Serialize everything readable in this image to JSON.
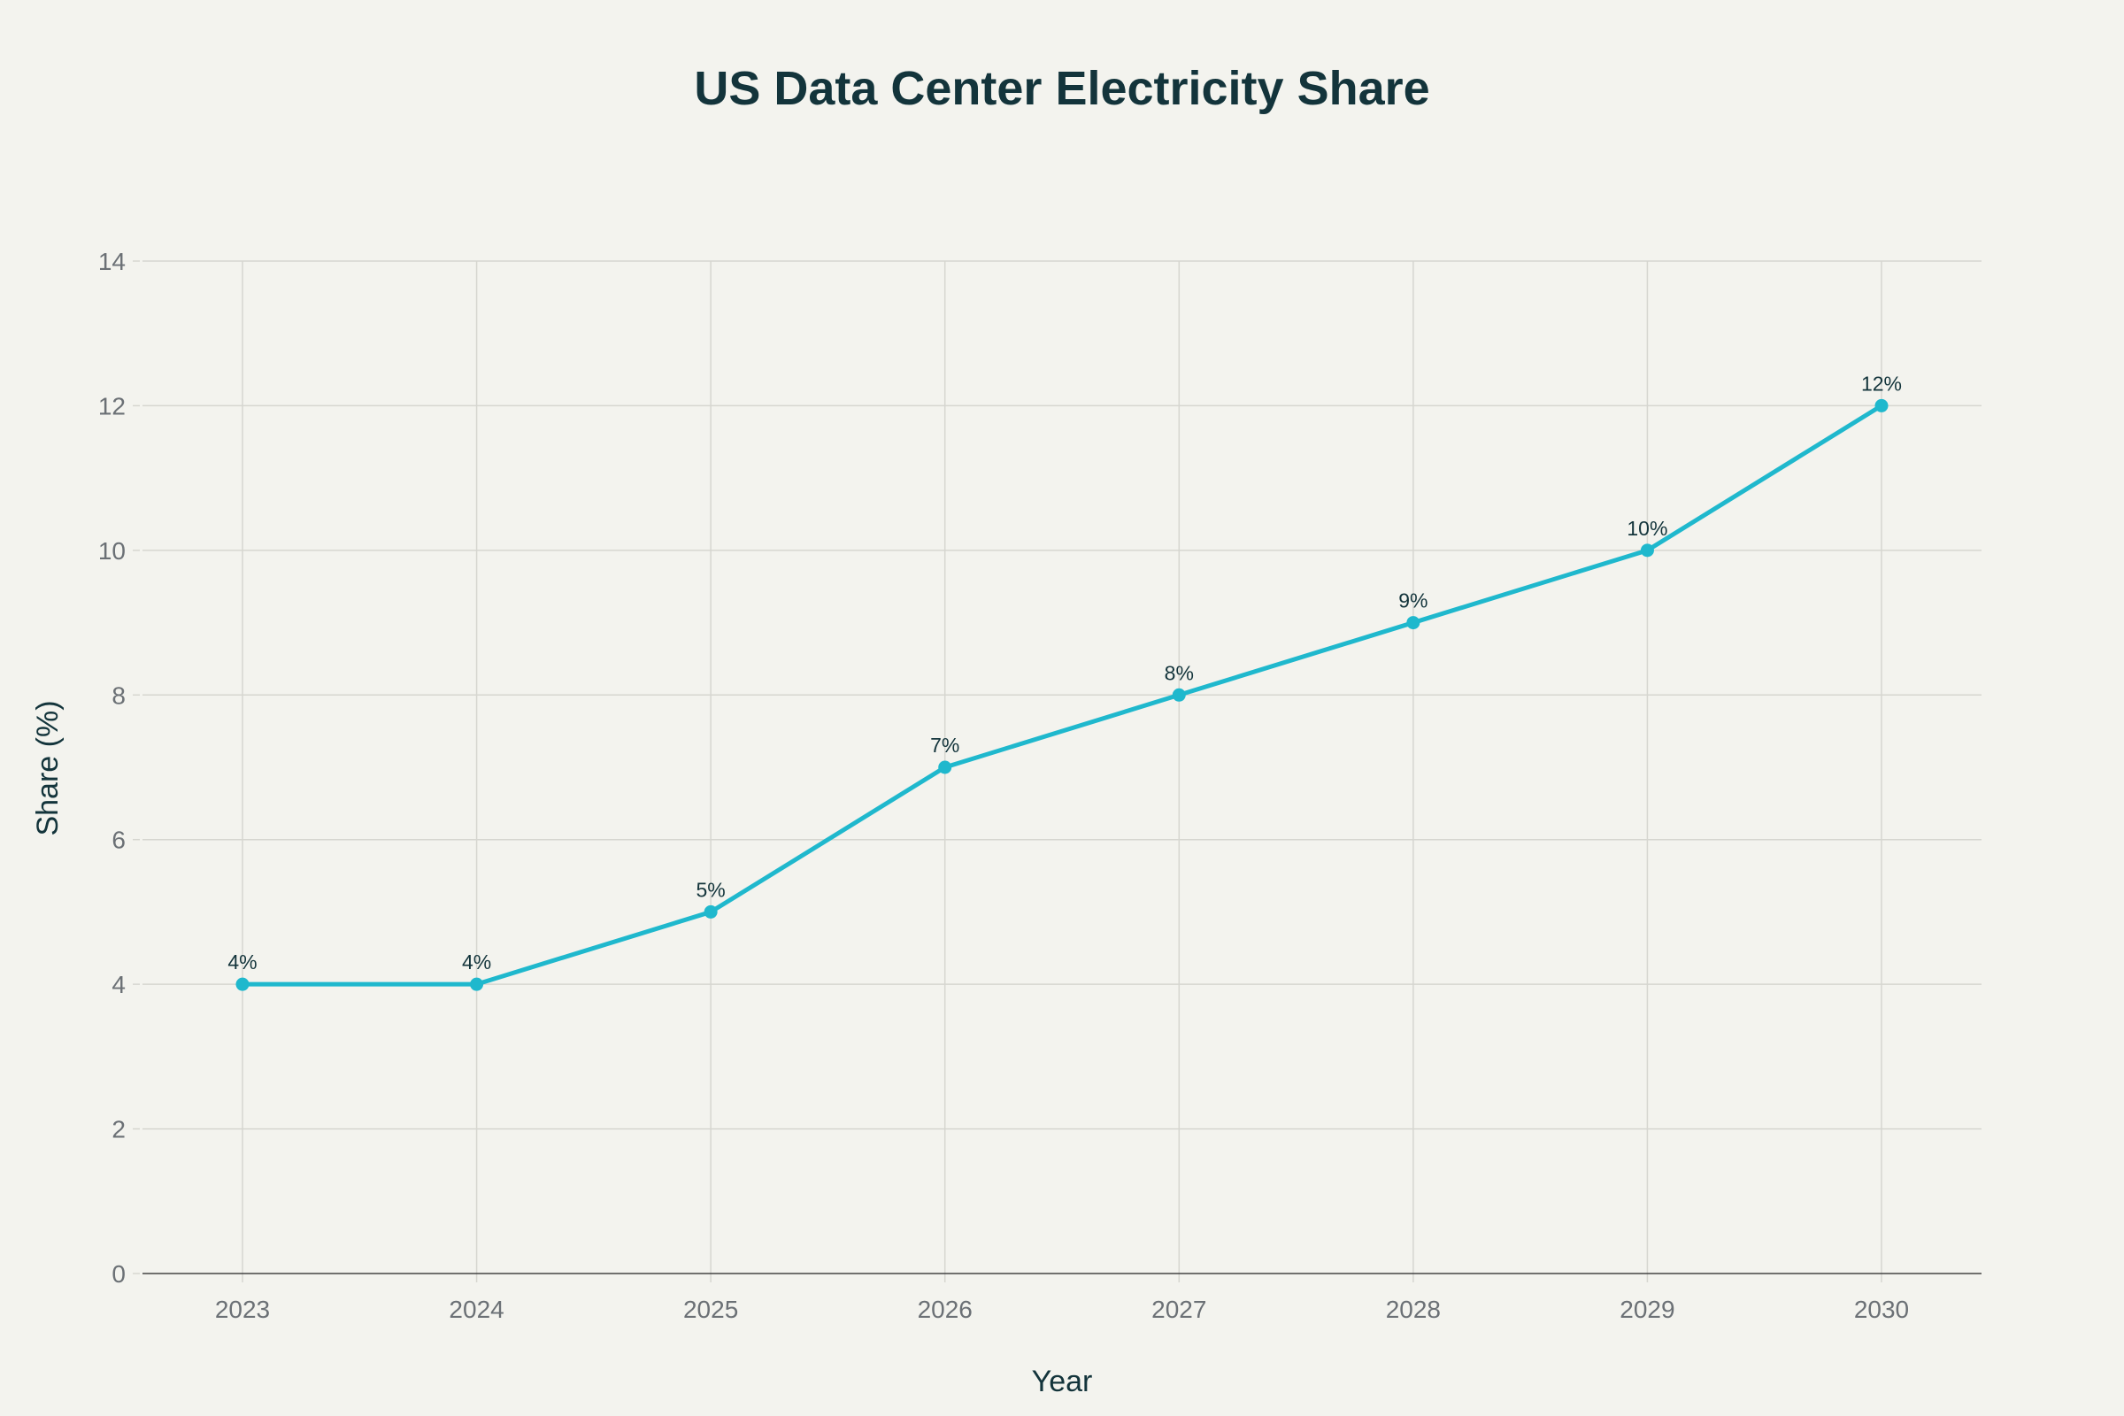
{
  "chart_data": {
    "type": "line",
    "title": "US Data Center Electricity Share",
    "xlabel": "Year",
    "ylabel": "Share (%)",
    "categories": [
      "2023",
      "2024",
      "2025",
      "2026",
      "2027",
      "2028",
      "2029",
      "2030"
    ],
    "values": [
      4,
      4,
      5,
      7,
      8,
      9,
      10,
      12
    ],
    "data_labels": [
      "4%",
      "4%",
      "5%",
      "7%",
      "8%",
      "9%",
      "10%",
      "12%"
    ],
    "ylim": [
      0,
      14
    ],
    "yticks": [
      "0",
      "2",
      "4",
      "6",
      "8",
      "10",
      "12",
      "14"
    ],
    "grid": true,
    "markers": true,
    "colors": {
      "line": "#1fb8cd",
      "grid": "#d6d6d0",
      "background": "#f3f3ee"
    }
  }
}
